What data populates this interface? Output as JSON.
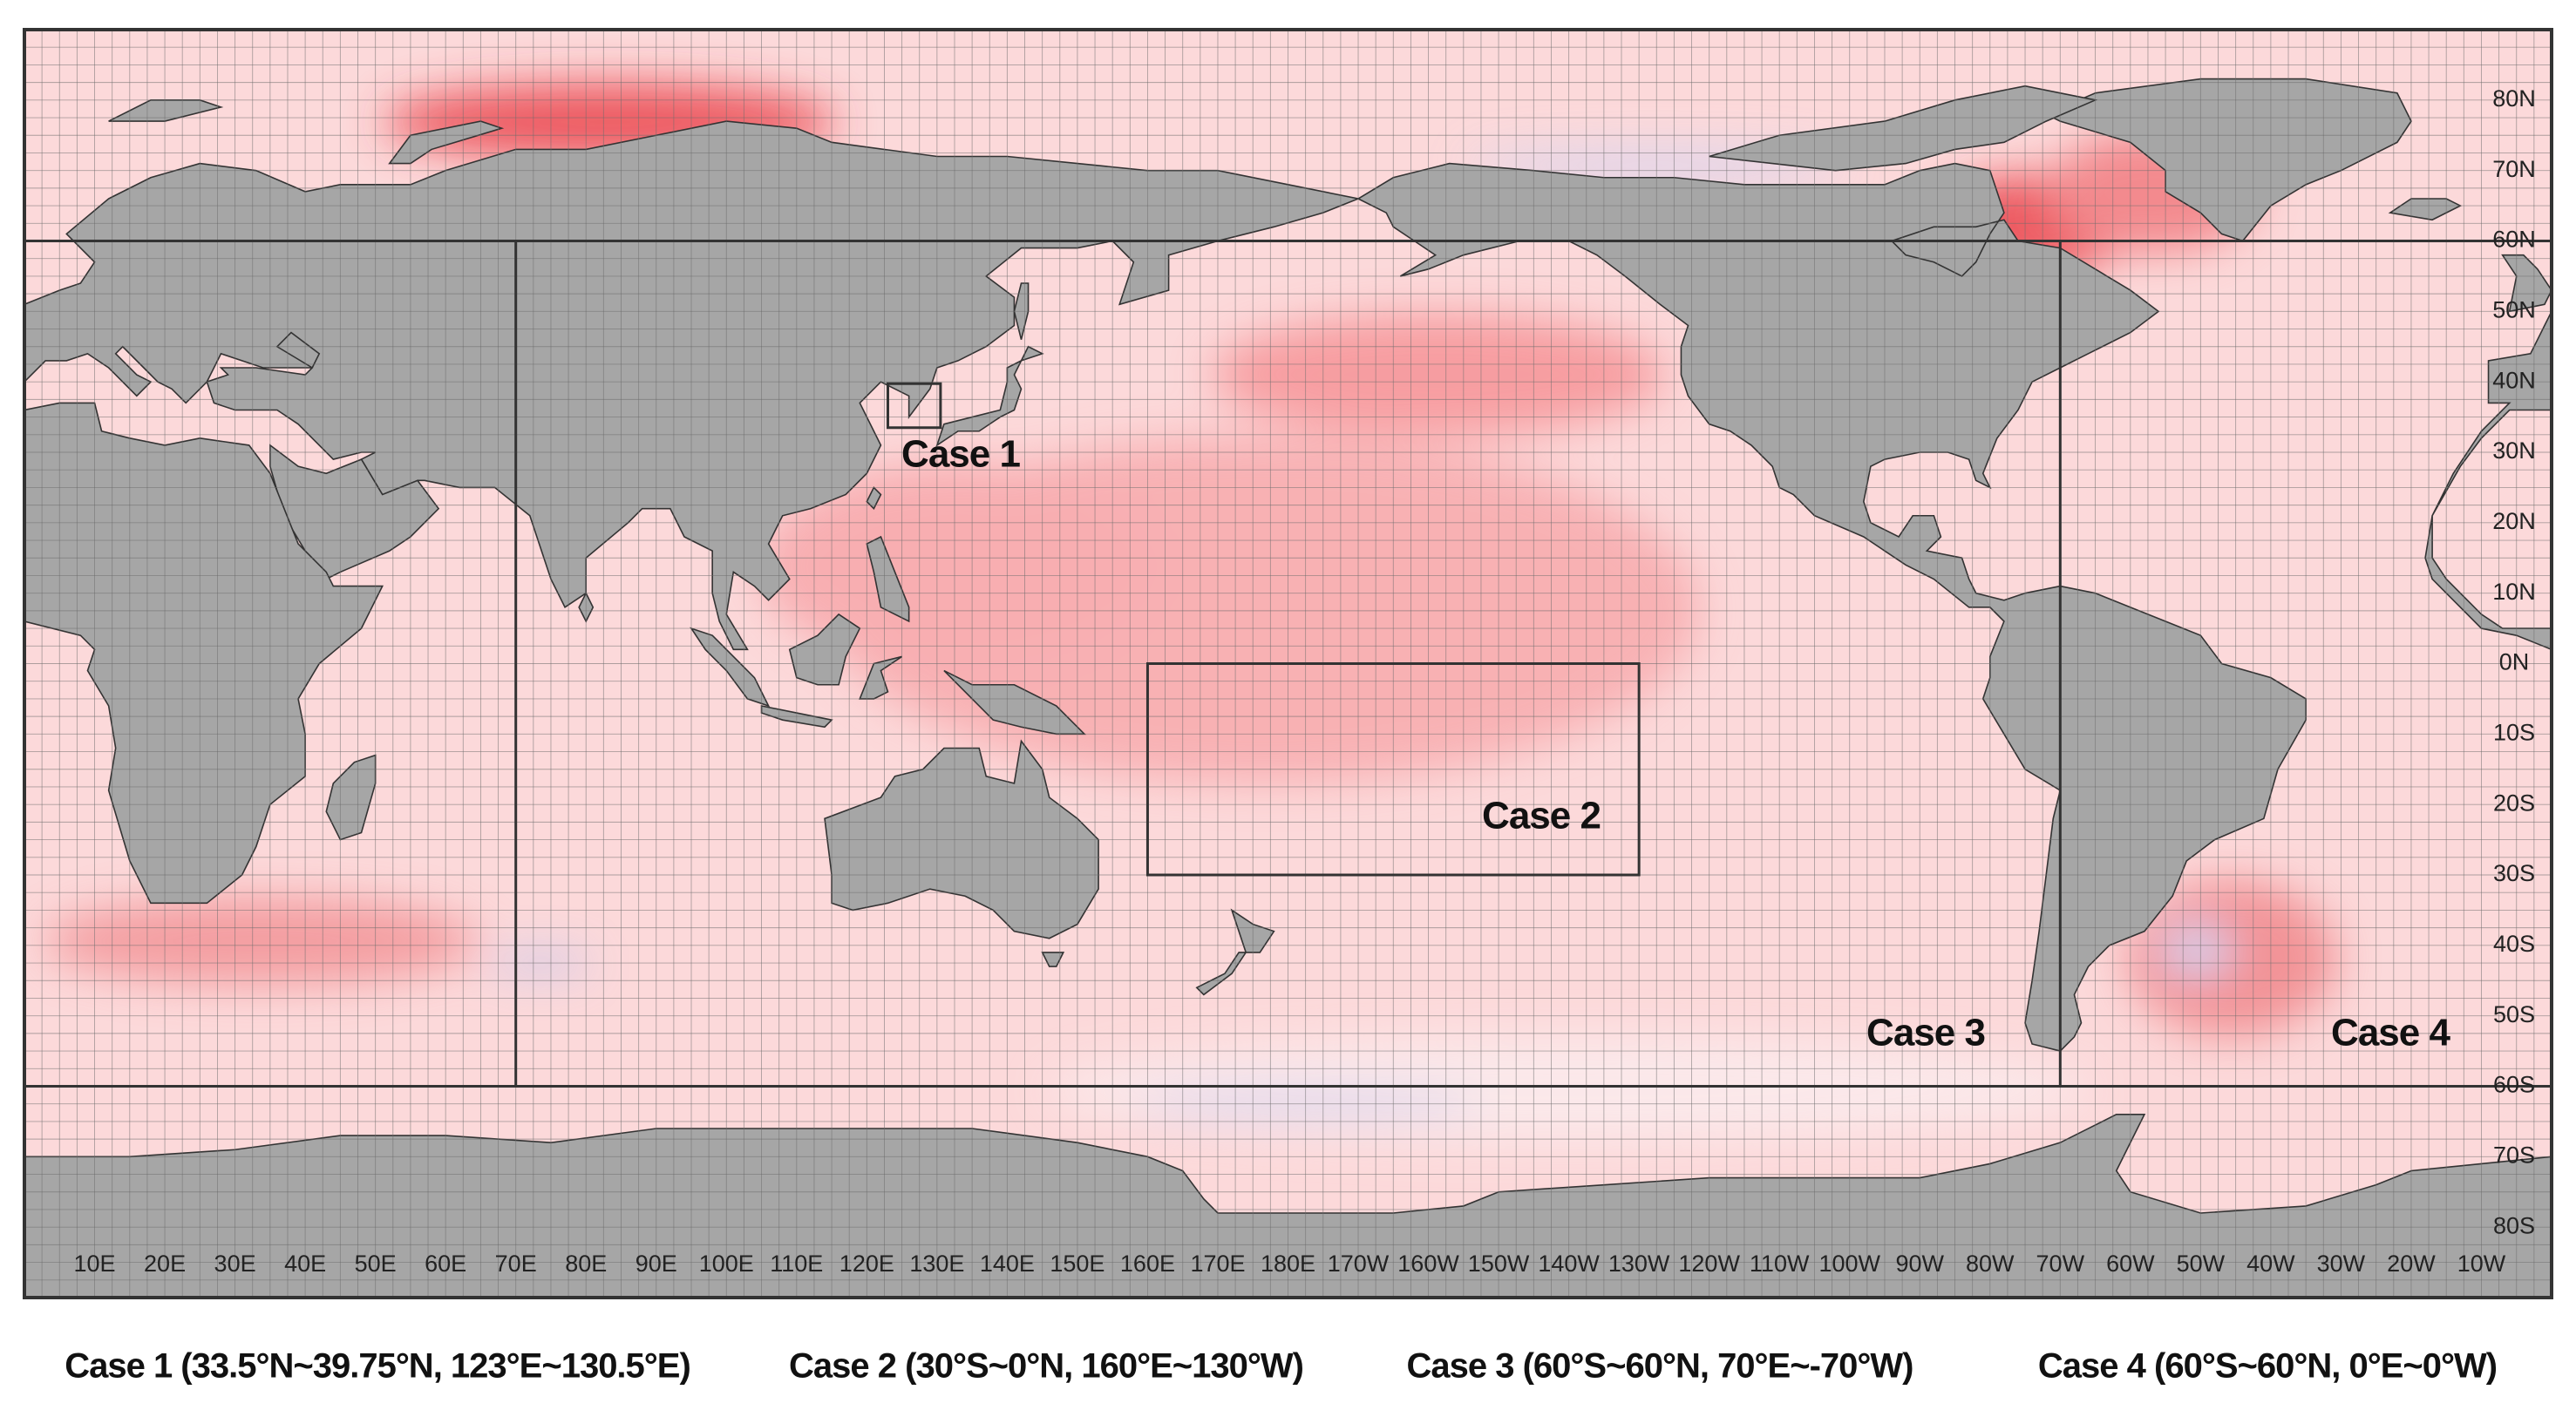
{
  "map": {
    "lon_labels": [
      "10E",
      "20E",
      "30E",
      "40E",
      "50E",
      "60E",
      "70E",
      "80E",
      "90E",
      "100E",
      "110E",
      "120E",
      "130E",
      "140E",
      "150E",
      "160E",
      "170E",
      "180E",
      "170W",
      "160W",
      "150W",
      "140W",
      "130W",
      "120W",
      "110W",
      "100W",
      "90W",
      "80W",
      "70W",
      "60W",
      "50W",
      "40W",
      "30W",
      "20W",
      "10W"
    ],
    "lat_labels": [
      "80N",
      "70N",
      "60N",
      "50N",
      "40N",
      "30N",
      "20N",
      "10N",
      "0N",
      "10S",
      "20S",
      "30S",
      "40S",
      "50S",
      "60S",
      "70S",
      "80S"
    ],
    "regions": [
      {
        "label": "Case 1"
      },
      {
        "label": "Case 2"
      },
      {
        "label": "Case 3"
      },
      {
        "label": "Case 4"
      }
    ],
    "captions": [
      "Case 1 (33.5°N~39.75°N,  123°E~130.5°E)",
      "Case 2 (30°S~0°N, 160°E~130°W)",
      "Case 3 (60°S~60°N, 70°E~-70°W)",
      "Case 4 (60°S~60°N,  0°E~0°W)"
    ]
  }
}
